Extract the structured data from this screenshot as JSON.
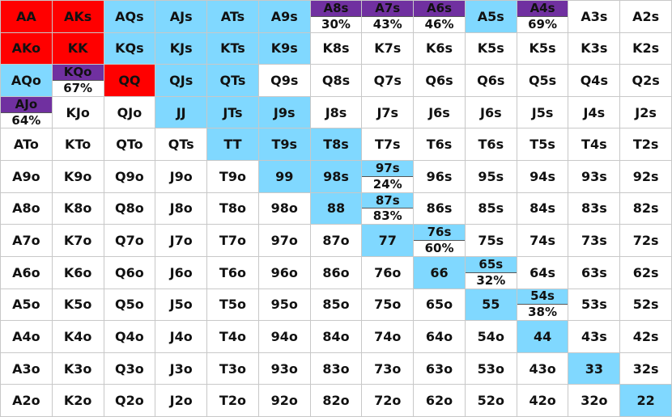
{
  "colors": {
    "red": "#ff0000",
    "blue": "#80d8ff",
    "purple": "#7030a0",
    "white": "#ffffff"
  },
  "grid": [
    [
      {
        "t": "AA",
        "c": "red"
      },
      {
        "t": "AKs",
        "c": "red"
      },
      {
        "t": "AQs",
        "c": "blue"
      },
      {
        "t": "AJs",
        "c": "blue"
      },
      {
        "t": "ATs",
        "c": "blue"
      },
      {
        "t": "A9s",
        "c": "blue"
      },
      {
        "t": "A8s",
        "c": "purple",
        "p": "30%"
      },
      {
        "t": "A7s",
        "c": "purple",
        "p": "43%"
      },
      {
        "t": "A6s",
        "c": "purple",
        "p": "46%"
      },
      {
        "t": "A5s",
        "c": "blue"
      },
      {
        "t": "A4s",
        "c": "purple",
        "p": "69%"
      },
      {
        "t": "A3s",
        "c": "white"
      },
      {
        "t": "A2s",
        "c": "white"
      }
    ],
    [
      {
        "t": "AKo",
        "c": "red"
      },
      {
        "t": "KK",
        "c": "red"
      },
      {
        "t": "KQs",
        "c": "blue"
      },
      {
        "t": "KJs",
        "c": "blue"
      },
      {
        "t": "KTs",
        "c": "blue"
      },
      {
        "t": "K9s",
        "c": "blue"
      },
      {
        "t": "K8s",
        "c": "white"
      },
      {
        "t": "K7s",
        "c": "white"
      },
      {
        "t": "K6s",
        "c": "white"
      },
      {
        "t": "K5s",
        "c": "white"
      },
      {
        "t": "K5s",
        "c": "white"
      },
      {
        "t": "K3s",
        "c": "white"
      },
      {
        "t": "K2s",
        "c": "white"
      }
    ],
    [
      {
        "t": "AQo",
        "c": "blue"
      },
      {
        "t": "KQo",
        "c": "purple",
        "p": "67%"
      },
      {
        "t": "QQ",
        "c": "red"
      },
      {
        "t": "QJs",
        "c": "blue"
      },
      {
        "t": "QTs",
        "c": "blue"
      },
      {
        "t": "Q9s",
        "c": "white"
      },
      {
        "t": "Q8s",
        "c": "white"
      },
      {
        "t": "Q7s",
        "c": "white"
      },
      {
        "t": "Q6s",
        "c": "white"
      },
      {
        "t": "Q6s",
        "c": "white"
      },
      {
        "t": "Q5s",
        "c": "white"
      },
      {
        "t": "Q4s",
        "c": "white"
      },
      {
        "t": "Q2s",
        "c": "white"
      }
    ],
    [
      {
        "t": "AJo",
        "c": "purple",
        "p": "64%"
      },
      {
        "t": "KJo",
        "c": "white"
      },
      {
        "t": "QJo",
        "c": "white"
      },
      {
        "t": "JJ",
        "c": "blue"
      },
      {
        "t": "JTs",
        "c": "blue"
      },
      {
        "t": "J9s",
        "c": "blue"
      },
      {
        "t": "J8s",
        "c": "white"
      },
      {
        "t": "J7s",
        "c": "white"
      },
      {
        "t": "J6s",
        "c": "white"
      },
      {
        "t": "J6s",
        "c": "white"
      },
      {
        "t": "J5s",
        "c": "white"
      },
      {
        "t": "J4s",
        "c": "white"
      },
      {
        "t": "J2s",
        "c": "white"
      }
    ],
    [
      {
        "t": "ATo",
        "c": "white"
      },
      {
        "t": "KTo",
        "c": "white"
      },
      {
        "t": "QTo",
        "c": "white"
      },
      {
        "t": "QTs",
        "c": "white"
      },
      {
        "t": "TT",
        "c": "blue"
      },
      {
        "t": "T9s",
        "c": "blue"
      },
      {
        "t": "T8s",
        "c": "blue"
      },
      {
        "t": "T7s",
        "c": "white"
      },
      {
        "t": "T6s",
        "c": "white"
      },
      {
        "t": "T6s",
        "c": "white"
      },
      {
        "t": "T5s",
        "c": "white"
      },
      {
        "t": "T4s",
        "c": "white"
      },
      {
        "t": "T2s",
        "c": "white"
      }
    ],
    [
      {
        "t": "A9o",
        "c": "white"
      },
      {
        "t": "K9o",
        "c": "white"
      },
      {
        "t": "Q9o",
        "c": "white"
      },
      {
        "t": "J9o",
        "c": "white"
      },
      {
        "t": "T9o",
        "c": "white"
      },
      {
        "t": "99",
        "c": "blue"
      },
      {
        "t": "98s",
        "c": "blue"
      },
      {
        "t": "97s",
        "c": "blue",
        "p": "24%"
      },
      {
        "t": "96s",
        "c": "white"
      },
      {
        "t": "95s",
        "c": "white"
      },
      {
        "t": "94s",
        "c": "white"
      },
      {
        "t": "93s",
        "c": "white"
      },
      {
        "t": "92s",
        "c": "white"
      }
    ],
    [
      {
        "t": "A8o",
        "c": "white"
      },
      {
        "t": "K8o",
        "c": "white"
      },
      {
        "t": "Q8o",
        "c": "white"
      },
      {
        "t": "J8o",
        "c": "white"
      },
      {
        "t": "T8o",
        "c": "white"
      },
      {
        "t": "98o",
        "c": "white"
      },
      {
        "t": "88",
        "c": "blue"
      },
      {
        "t": "87s",
        "c": "blue",
        "p": "83%"
      },
      {
        "t": "86s",
        "c": "white"
      },
      {
        "t": "85s",
        "c": "white"
      },
      {
        "t": "84s",
        "c": "white"
      },
      {
        "t": "83s",
        "c": "white"
      },
      {
        "t": "82s",
        "c": "white"
      }
    ],
    [
      {
        "t": "A7o",
        "c": "white"
      },
      {
        "t": "K7o",
        "c": "white"
      },
      {
        "t": "Q7o",
        "c": "white"
      },
      {
        "t": "J7o",
        "c": "white"
      },
      {
        "t": "T7o",
        "c": "white"
      },
      {
        "t": "97o",
        "c": "white"
      },
      {
        "t": "87o",
        "c": "white"
      },
      {
        "t": "77",
        "c": "blue"
      },
      {
        "t": "76s",
        "c": "blue",
        "p": "60%"
      },
      {
        "t": "75s",
        "c": "white"
      },
      {
        "t": "74s",
        "c": "white"
      },
      {
        "t": "73s",
        "c": "white"
      },
      {
        "t": "72s",
        "c": "white"
      }
    ],
    [
      {
        "t": "A6o",
        "c": "white"
      },
      {
        "t": "K6o",
        "c": "white"
      },
      {
        "t": "Q6o",
        "c": "white"
      },
      {
        "t": "J6o",
        "c": "white"
      },
      {
        "t": "T6o",
        "c": "white"
      },
      {
        "t": "96o",
        "c": "white"
      },
      {
        "t": "86o",
        "c": "white"
      },
      {
        "t": "76o",
        "c": "white"
      },
      {
        "t": "66",
        "c": "blue"
      },
      {
        "t": "65s",
        "c": "blue",
        "p": "32%"
      },
      {
        "t": "64s",
        "c": "white"
      },
      {
        "t": "63s",
        "c": "white"
      },
      {
        "t": "62s",
        "c": "white"
      }
    ],
    [
      {
        "t": "A5o",
        "c": "white"
      },
      {
        "t": "K5o",
        "c": "white"
      },
      {
        "t": "Q5o",
        "c": "white"
      },
      {
        "t": "J5o",
        "c": "white"
      },
      {
        "t": "T5o",
        "c": "white"
      },
      {
        "t": "95o",
        "c": "white"
      },
      {
        "t": "85o",
        "c": "white"
      },
      {
        "t": "75o",
        "c": "white"
      },
      {
        "t": "65o",
        "c": "white"
      },
      {
        "t": "55",
        "c": "blue"
      },
      {
        "t": "54s",
        "c": "blue",
        "p": "38%"
      },
      {
        "t": "53s",
        "c": "white"
      },
      {
        "t": "52s",
        "c": "white"
      }
    ],
    [
      {
        "t": "A4o",
        "c": "white"
      },
      {
        "t": "K4o",
        "c": "white"
      },
      {
        "t": "Q4o",
        "c": "white"
      },
      {
        "t": "J4o",
        "c": "white"
      },
      {
        "t": "T4o",
        "c": "white"
      },
      {
        "t": "94o",
        "c": "white"
      },
      {
        "t": "84o",
        "c": "white"
      },
      {
        "t": "74o",
        "c": "white"
      },
      {
        "t": "64o",
        "c": "white"
      },
      {
        "t": "54o",
        "c": "white"
      },
      {
        "t": "44",
        "c": "blue"
      },
      {
        "t": "43s",
        "c": "white"
      },
      {
        "t": "42s",
        "c": "white"
      }
    ],
    [
      {
        "t": "A3o",
        "c": "white"
      },
      {
        "t": "K3o",
        "c": "white"
      },
      {
        "t": "Q3o",
        "c": "white"
      },
      {
        "t": "J3o",
        "c": "white"
      },
      {
        "t": "T3o",
        "c": "white"
      },
      {
        "t": "93o",
        "c": "white"
      },
      {
        "t": "83o",
        "c": "white"
      },
      {
        "t": "73o",
        "c": "white"
      },
      {
        "t": "63o",
        "c": "white"
      },
      {
        "t": "53o",
        "c": "white"
      },
      {
        "t": "43o",
        "c": "white"
      },
      {
        "t": "33",
        "c": "blue"
      },
      {
        "t": "32s",
        "c": "white"
      }
    ],
    [
      {
        "t": "A2o",
        "c": "white"
      },
      {
        "t": "K2o",
        "c": "white"
      },
      {
        "t": "Q2o",
        "c": "white"
      },
      {
        "t": "J2o",
        "c": "white"
      },
      {
        "t": "T2o",
        "c": "white"
      },
      {
        "t": "92o",
        "c": "white"
      },
      {
        "t": "82o",
        "c": "white"
      },
      {
        "t": "72o",
        "c": "white"
      },
      {
        "t": "62o",
        "c": "white"
      },
      {
        "t": "52o",
        "c": "white"
      },
      {
        "t": "42o",
        "c": "white"
      },
      {
        "t": "32o",
        "c": "white"
      },
      {
        "t": "22",
        "c": "blue"
      }
    ]
  ]
}
